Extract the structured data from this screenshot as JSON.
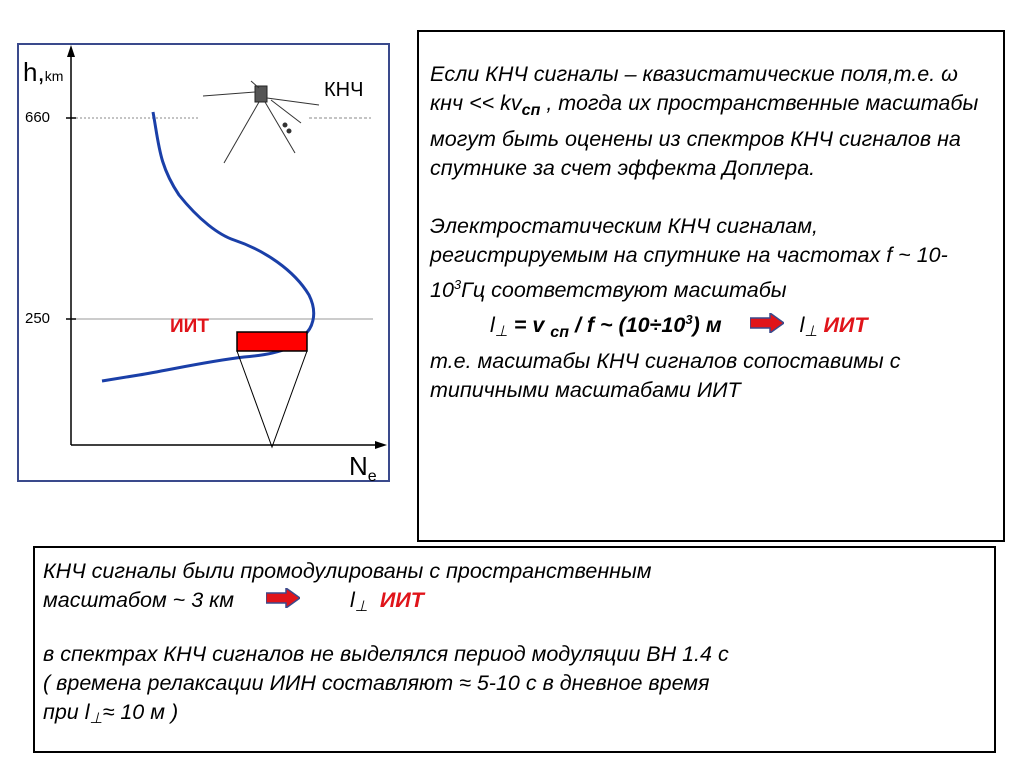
{
  "figure": {
    "y_axis_label": "h,",
    "y_axis_unit": "km",
    "x_axis_label": "N",
    "x_axis_sub": "e",
    "ticks": [
      "660",
      "250"
    ],
    "satellite_label": "КНЧ",
    "region_label": "ИИТ"
  },
  "right_box": {
    "para1_a": "Если КНЧ сигналы –  квазистатические поля,т.е. ω кнч << kv",
    "para1_sub": "сп",
    "para1_b": ", тогда их пространственные масштабы могут быть оценены из спектров КНЧ сигналов на спутнике за счет эффекта Доплера.",
    "para2": "Электростатическим  КНЧ сигналам, регистрируемым  на спутнике на частотах f ~ 10- 10",
    "para2_sup": "3",
    "para2_b": "Гц соответствуют масштабы",
    "formula_l": "l",
    "formula_perp": "⊥",
    "formula_mid": " = v ",
    "formula_sub": "сп",
    "formula_rest": " / f  ~ (10÷10",
    "formula_sup": "3",
    "formula_end": ") м",
    "formula_result_l": "l",
    "formula_result_perp": "⊥",
    "formula_result_red": "ИИТ",
    "para3": "т.е. масштабы КНЧ сигналов сопоставимы с типичными масштабами ИИТ"
  },
  "bottom_box": {
    "line1": "КНЧ сигналы были промодулированы с  пространственным",
    "line2_a": "масштабом  ~ 3 км",
    "line2_l": "l",
    "line2_perp": "⊥",
    "line2_red": "ИИТ",
    "line3": "в спектрах КНЧ сигналов   не выделялся период  модуляции ВН 1.4 с",
    "line4": "( времена релаксации ИИН  составляют ≈ 5-10 с  в дневное время",
    "line5_a": "при  l",
    "line5_perp": "⊥",
    "line5_b": "≈ 10 м )"
  },
  "colors": {
    "profile_curve": "#1a3fa8",
    "region_fill": "#ff0000",
    "arrow_fill": "#e0141a",
    "figure_border": "#3a4a8c"
  }
}
